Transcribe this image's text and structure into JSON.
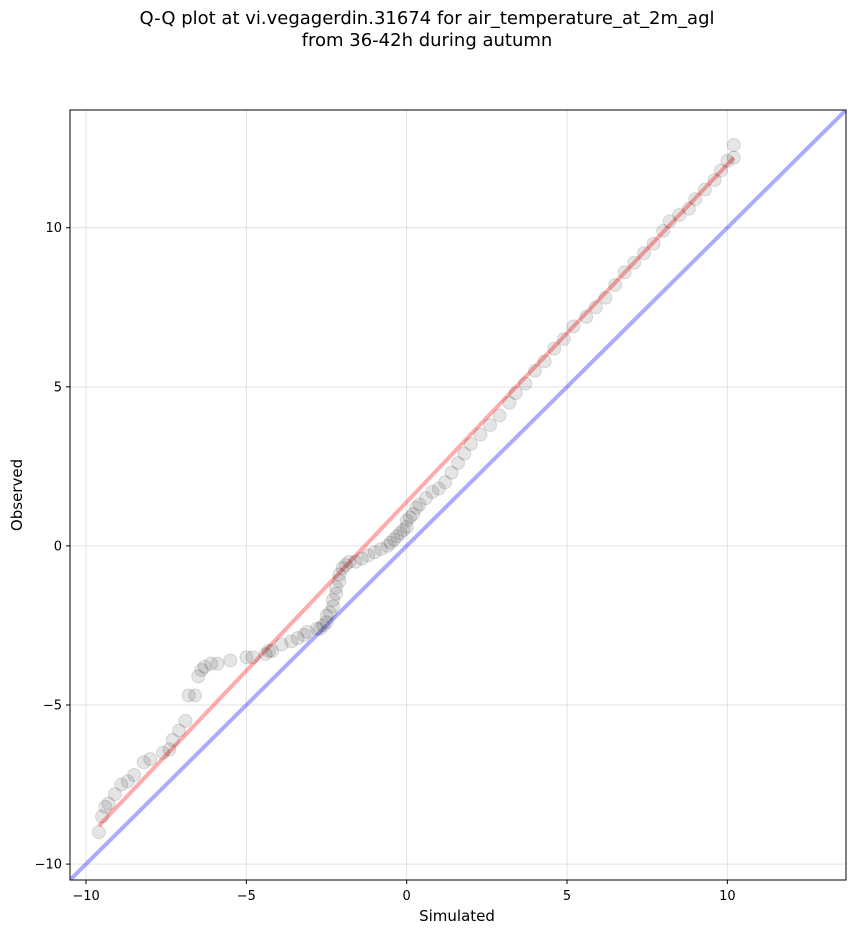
{
  "chart_data": {
    "type": "scatter",
    "title_line1": "Q-Q plot at vi.vegagerdin.31674 for air_temperature_at_2m_agl",
    "title_line2": "from 36-42h during autumn",
    "xlabel": "Simulated",
    "ylabel": "Observed",
    "xlim": [
      -10.5,
      13.7
    ],
    "ylim": [
      -10.5,
      13.7
    ],
    "xticks": [
      -10,
      -5,
      0,
      5,
      10
    ],
    "yticks": [
      -10,
      -5,
      0,
      5,
      10
    ],
    "xtick_labels": [
      "−10",
      "−5",
      "0",
      "5",
      "10"
    ],
    "ytick_labels": [
      "−10",
      "−5",
      "0",
      "5",
      "10"
    ],
    "grid": true,
    "colors": {
      "points": "#000000",
      "fit_line": "#ff0000",
      "identity_line": "#0000ff"
    },
    "identity_line": {
      "slope": 1,
      "intercept": 0
    },
    "fit_line": {
      "x": [
        -9.6,
        10.2
      ],
      "y": [
        -8.8,
        12.2
      ]
    },
    "quantiles": [
      {
        "x": -9.6,
        "y": -9.0
      },
      {
        "x": -9.5,
        "y": -8.5
      },
      {
        "x": -9.4,
        "y": -8.2
      },
      {
        "x": -9.3,
        "y": -8.1
      },
      {
        "x": -9.1,
        "y": -7.8
      },
      {
        "x": -8.9,
        "y": -7.5
      },
      {
        "x": -8.7,
        "y": -7.4
      },
      {
        "x": -8.5,
        "y": -7.2
      },
      {
        "x": -8.2,
        "y": -6.8
      },
      {
        "x": -8.0,
        "y": -6.7
      },
      {
        "x": -7.6,
        "y": -6.5
      },
      {
        "x": -7.4,
        "y": -6.4
      },
      {
        "x": -7.3,
        "y": -6.1
      },
      {
        "x": -7.1,
        "y": -5.8
      },
      {
        "x": -6.9,
        "y": -5.5
      },
      {
        "x": -6.8,
        "y": -4.7
      },
      {
        "x": -6.6,
        "y": -4.7
      },
      {
        "x": -6.5,
        "y": -4.1
      },
      {
        "x": -6.4,
        "y": -3.9
      },
      {
        "x": -6.3,
        "y": -3.8
      },
      {
        "x": -6.1,
        "y": -3.7
      },
      {
        "x": -5.9,
        "y": -3.7
      },
      {
        "x": -5.5,
        "y": -3.6
      },
      {
        "x": -5.0,
        "y": -3.5
      },
      {
        "x": -4.8,
        "y": -3.5
      },
      {
        "x": -4.4,
        "y": -3.4
      },
      {
        "x": -4.3,
        "y": -3.3
      },
      {
        "x": -4.2,
        "y": -3.3
      },
      {
        "x": -3.9,
        "y": -3.1
      },
      {
        "x": -3.6,
        "y": -3.0
      },
      {
        "x": -3.4,
        "y": -2.9
      },
      {
        "x": -3.2,
        "y": -2.8
      },
      {
        "x": -3.1,
        "y": -2.7
      },
      {
        "x": -2.8,
        "y": -2.6
      },
      {
        "x": -2.7,
        "y": -2.6
      },
      {
        "x": -2.6,
        "y": -2.5
      },
      {
        "x": -2.5,
        "y": -2.4
      },
      {
        "x": -2.5,
        "y": -2.2
      },
      {
        "x": -2.4,
        "y": -2.1
      },
      {
        "x": -2.3,
        "y": -1.9
      },
      {
        "x": -2.3,
        "y": -1.7
      },
      {
        "x": -2.2,
        "y": -1.5
      },
      {
        "x": -2.2,
        "y": -1.3
      },
      {
        "x": -2.1,
        "y": -1.1
      },
      {
        "x": -2.1,
        "y": -0.9
      },
      {
        "x": -2.0,
        "y": -0.7
      },
      {
        "x": -1.9,
        "y": -0.6
      },
      {
        "x": -1.8,
        "y": -0.5
      },
      {
        "x": -1.6,
        "y": -0.5
      },
      {
        "x": -1.4,
        "y": -0.4
      },
      {
        "x": -1.2,
        "y": -0.3
      },
      {
        "x": -1.0,
        "y": -0.2
      },
      {
        "x": -0.8,
        "y": -0.1
      },
      {
        "x": -0.6,
        "y": 0.0
      },
      {
        "x": -0.5,
        "y": 0.1
      },
      {
        "x": -0.4,
        "y": 0.2
      },
      {
        "x": -0.3,
        "y": 0.3
      },
      {
        "x": -0.2,
        "y": 0.4
      },
      {
        "x": -0.1,
        "y": 0.5
      },
      {
        "x": 0.0,
        "y": 0.6
      },
      {
        "x": 0.0,
        "y": 0.8
      },
      {
        "x": 0.1,
        "y": 0.9
      },
      {
        "x": 0.2,
        "y": 1.0
      },
      {
        "x": 0.3,
        "y": 1.2
      },
      {
        "x": 0.4,
        "y": 1.3
      },
      {
        "x": 0.6,
        "y": 1.5
      },
      {
        "x": 0.8,
        "y": 1.7
      },
      {
        "x": 1.0,
        "y": 1.8
      },
      {
        "x": 1.2,
        "y": 2.0
      },
      {
        "x": 1.4,
        "y": 2.3
      },
      {
        "x": 1.6,
        "y": 2.6
      },
      {
        "x": 1.8,
        "y": 2.9
      },
      {
        "x": 2.0,
        "y": 3.2
      },
      {
        "x": 2.3,
        "y": 3.5
      },
      {
        "x": 2.6,
        "y": 3.8
      },
      {
        "x": 2.9,
        "y": 4.1
      },
      {
        "x": 3.2,
        "y": 4.5
      },
      {
        "x": 3.4,
        "y": 4.8
      },
      {
        "x": 3.7,
        "y": 5.1
      },
      {
        "x": 4.0,
        "y": 5.5
      },
      {
        "x": 4.3,
        "y": 5.8
      },
      {
        "x": 4.6,
        "y": 6.2
      },
      {
        "x": 4.9,
        "y": 6.5
      },
      {
        "x": 5.2,
        "y": 6.9
      },
      {
        "x": 5.6,
        "y": 7.2
      },
      {
        "x": 5.9,
        "y": 7.5
      },
      {
        "x": 6.2,
        "y": 7.8
      },
      {
        "x": 6.5,
        "y": 8.2
      },
      {
        "x": 6.8,
        "y": 8.6
      },
      {
        "x": 7.1,
        "y": 8.9
      },
      {
        "x": 7.4,
        "y": 9.2
      },
      {
        "x": 7.7,
        "y": 9.5
      },
      {
        "x": 8.0,
        "y": 9.9
      },
      {
        "x": 8.2,
        "y": 10.2
      },
      {
        "x": 8.5,
        "y": 10.4
      },
      {
        "x": 8.8,
        "y": 10.6
      },
      {
        "x": 9.0,
        "y": 10.9
      },
      {
        "x": 9.3,
        "y": 11.2
      },
      {
        "x": 9.6,
        "y": 11.5
      },
      {
        "x": 9.8,
        "y": 11.8
      },
      {
        "x": 10.0,
        "y": 12.1
      },
      {
        "x": 10.2,
        "y": 12.2
      },
      {
        "x": 10.2,
        "y": 12.6
      }
    ]
  }
}
